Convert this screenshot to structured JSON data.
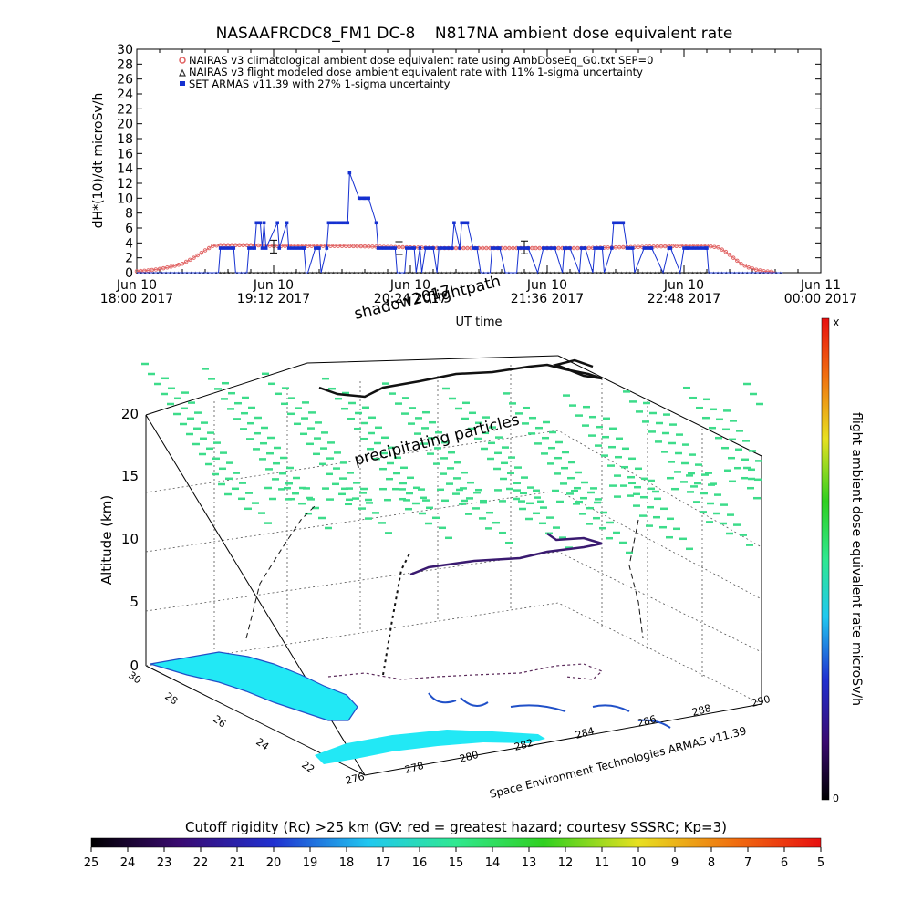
{
  "chart_data": [
    {
      "type": "line",
      "title": "NASAAFRCDC8_FM1 DC-8    N817NA ambient dose equivalent rate",
      "ylabel": "dH*(10)/dt microSv/h",
      "xlabel": "UT time",
      "ylim": [
        0,
        30
      ],
      "yticks": [
        "0",
        "2",
        "4",
        "6",
        "8",
        "10",
        "12",
        "14",
        "16",
        "18",
        "20",
        "22",
        "24",
        "26",
        "28",
        "30"
      ],
      "xticks": [
        {
          "day": "Jun 10",
          "time": "18:00 2017",
          "v": 0
        },
        {
          "day": "Jun 10",
          "time": "19:12 2017",
          "v": 72
        },
        {
          "day": "Jun 10",
          "time": "20:24 2017",
          "v": 144
        },
        {
          "day": "Jun 10",
          "time": "21:36 2017",
          "v": 216
        },
        {
          "day": "Jun 10",
          "time": "22:48 2017",
          "v": 288
        },
        {
          "day": "Jun 11",
          "time": "00:00 2017",
          "v": 360
        }
      ],
      "legend": [
        {
          "label": "NAIRAS v3 climatological ambient dose equivalent rate using AmbDoseEq_G0.txt SEP=0",
          "color": "#e06060",
          "marker": "circle"
        },
        {
          "label": "NAIRAS v3 flight modeled dose ambient equivalent rate with 11% 1-sigma uncertainty",
          "color": "#333333",
          "marker": "triangle"
        },
        {
          "label": "SET ARMAS v11.39 with 27% 1-sigma uncertainty",
          "color": "#1530d0",
          "marker": "square"
        }
      ],
      "series": [
        {
          "name": "NAIRAS v3 climatological ambient dose equivalent rate using AmbDoseEq_G0.txt SEP=0",
          "x": [
            0,
            6,
            12,
            18,
            24,
            30,
            36,
            40,
            44,
            48,
            52,
            60,
            72,
            90,
            108,
            126,
            144,
            162,
            180,
            198,
            216,
            234,
            252,
            270,
            288,
            300,
            306,
            310,
            314,
            318,
            322,
            326,
            330,
            336
          ],
          "y": [
            0.2,
            0.3,
            0.5,
            0.8,
            1.2,
            2,
            3,
            3.6,
            3.7,
            3.7,
            3.7,
            3.7,
            3.6,
            3.6,
            3.6,
            3.5,
            3.4,
            3.3,
            3.3,
            3.3,
            3.3,
            3.3,
            3.4,
            3.5,
            3.6,
            3.6,
            3.4,
            2.8,
            2,
            1.2,
            0.7,
            0.4,
            0.2,
            0.1
          ]
        },
        {
          "name": "NAIRAS v3 flight modeled dose ambient equivalent rate with 11% 1-sigma uncertainty",
          "errorbars": [
            {
              "x": 72,
              "y": 3.5
            },
            {
              "x": 138,
              "y": 3.3
            },
            {
              "x": 204,
              "y": 3.4
            }
          ]
        },
        {
          "name": "SET ARMAS v11.39 with 27% 1-sigma uncertainty",
          "x": [
            0,
            40,
            43,
            44,
            51,
            52,
            58,
            59,
            62,
            63,
            65,
            66,
            67,
            68,
            74,
            75,
            79,
            80,
            88,
            89,
            90,
            94,
            96,
            97,
            100,
            101,
            111,
            112,
            117,
            118,
            120,
            122,
            126,
            127,
            136,
            137,
            141,
            142,
            146,
            147,
            149,
            150,
            152,
            156,
            158,
            159,
            166,
            167,
            170,
            171,
            174,
            177,
            179,
            181,
            186,
            187,
            191,
            194,
            200,
            201,
            206,
            211,
            214,
            220,
            224,
            225,
            228,
            233,
            234,
            236,
            240,
            241,
            245,
            246,
            250,
            251,
            256,
            258,
            261,
            262,
            267,
            271,
            277,
            280,
            281,
            286,
            288,
            290,
            300,
            301,
            306,
            340
          ],
          "y": [
            0,
            0,
            0,
            3.3,
            3.3,
            0,
            0,
            3.3,
            3.3,
            6.7,
            6.7,
            3.3,
            6.7,
            3.3,
            6.7,
            3.3,
            6.7,
            3.3,
            3.3,
            0,
            0,
            3.3,
            3.3,
            0,
            3.3,
            6.7,
            6.7,
            13.4,
            10,
            10,
            10,
            10,
            6.7,
            3.3,
            3.3,
            0,
            0,
            3.3,
            3.3,
            0,
            3.3,
            0,
            3.3,
            3.3,
            0,
            3.3,
            3.3,
            6.7,
            3.3,
            6.7,
            6.7,
            3.3,
            3.3,
            0,
            0,
            3.3,
            3.3,
            0,
            0,
            3.3,
            3.3,
            0,
            3.3,
            3.3,
            0,
            3.3,
            3.3,
            0,
            3.3,
            3.3,
            0,
            3.3,
            3.3,
            0,
            3.3,
            6.7,
            6.7,
            3.3,
            3.3,
            0,
            3.3,
            3.3,
            0,
            3.3,
            3.3,
            0,
            3.3,
            3.3,
            3.3,
            0,
            0,
            0
          ]
        }
      ]
    },
    {
      "type": "scatter",
      "ylabel": "Altitude (km)",
      "zticks": [
        "0",
        "5",
        "10",
        "15",
        "20"
      ],
      "lat_ticks": [
        "30",
        "28",
        "26",
        "24",
        "22"
      ],
      "lon_ticks": [
        "276",
        "278",
        "280",
        "282",
        "284",
        "286",
        "288",
        "290"
      ],
      "annotations": {
        "shadow": "shadow2017",
        "flightpath": "flightpath",
        "particles": "precipitating particles",
        "credit": "Space Environment Technologies ARMAS v11.39"
      },
      "colorbar_right": {
        "label": "flight ambient dose equivalent rate microSv/h",
        "top": "X",
        "bottom": "0"
      },
      "colorbar_bottom": {
        "label": "Cutoff rigidity (Rc) >25 km (GV: red = greatest hazard; courtesy SSSRC; Kp=3)",
        "ticks": [
          "25",
          "24",
          "23",
          "22",
          "21",
          "20",
          "19",
          "18",
          "17",
          "16",
          "15",
          "14",
          "13",
          "12",
          "11",
          "10",
          "9",
          "8",
          "7",
          "6",
          "5"
        ]
      }
    }
  ],
  "colors": {
    "nairas": "#e06060",
    "armas": "#1530d0",
    "particles": "#3ddc8a",
    "land": "#22e8f5",
    "coast": "#2050c8"
  }
}
